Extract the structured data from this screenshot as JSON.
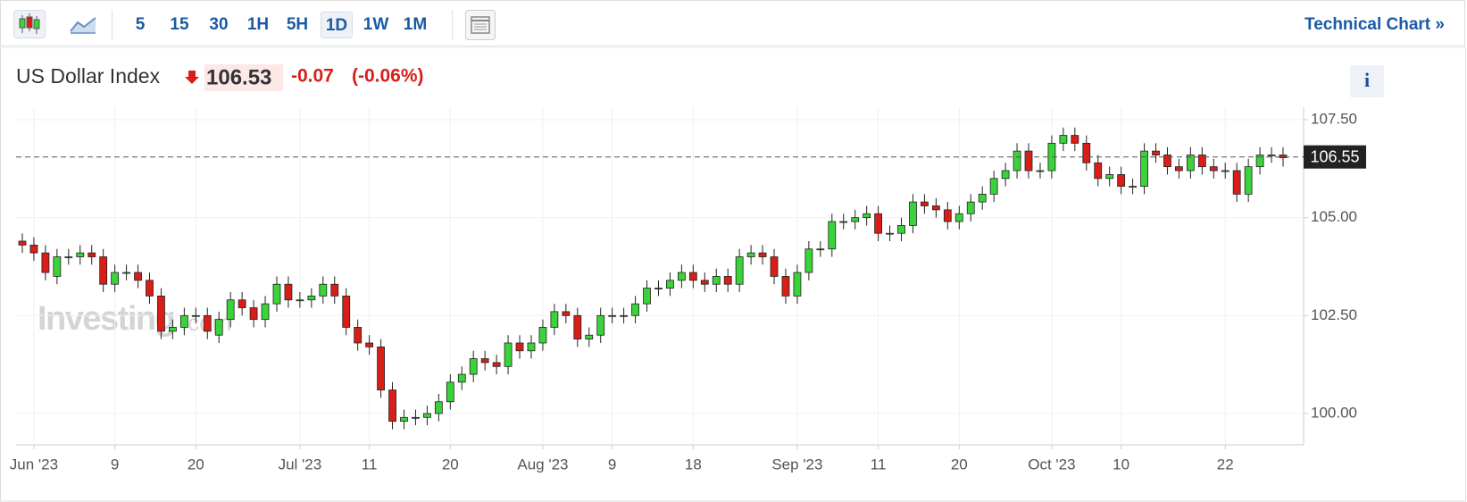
{
  "toolbar": {
    "intervals": [
      "5",
      "15",
      "30",
      "1H",
      "5H",
      "1D",
      "1W",
      "1M"
    ],
    "selected": "1D",
    "link": "Technical Chart"
  },
  "header": {
    "title": "US Dollar Index",
    "change_percent": "(-0.06%)"
  },
  "watermark": {
    "brand": "Investing",
    "suffix": ".com"
  },
  "chart_data": {
    "type": "candlestick",
    "title": "US Dollar Index",
    "price": 106.53,
    "change": -0.07,
    "last_price": 106.55,
    "up_color": "#3ad33a",
    "down_color": "#d91e18",
    "ylim": [
      99.2,
      107.82
    ],
    "yticks": [
      {
        "value": 100,
        "label": "100.00"
      },
      {
        "value": 102.5,
        "label": "102.50"
      },
      {
        "value": 105,
        "label": "105.00"
      },
      {
        "value": 107.5,
        "label": "107.50"
      }
    ],
    "categories": [
      null,
      "Jun '23",
      null,
      null,
      null,
      null,
      null,
      null,
      "9",
      null,
      null,
      null,
      null,
      null,
      null,
      "20",
      null,
      null,
      null,
      null,
      null,
      null,
      null,
      null,
      "Jul '23",
      null,
      null,
      null,
      null,
      null,
      "11",
      null,
      null,
      null,
      null,
      null,
      null,
      "20",
      null,
      null,
      null,
      null,
      null,
      null,
      null,
      "Aug '23",
      null,
      null,
      null,
      null,
      null,
      "9",
      null,
      null,
      null,
      null,
      null,
      null,
      "18",
      null,
      null,
      null,
      null,
      null,
      null,
      null,
      null,
      "Sep '23",
      null,
      null,
      null,
      null,
      null,
      null,
      "11",
      null,
      null,
      null,
      null,
      null,
      null,
      "20",
      null,
      null,
      null,
      null,
      null,
      null,
      null,
      "Oct '23",
      null,
      null,
      null,
      null,
      null,
      "10",
      null,
      null,
      null,
      null,
      null,
      null,
      null,
      null,
      "22",
      null,
      null,
      null,
      null,
      null
    ],
    "open": [
      104.4,
      104.3,
      104.1,
      103.5,
      104.0,
      104.0,
      104.1,
      104.0,
      103.3,
      103.6,
      103.6,
      103.4,
      103.0,
      102.1,
      102.2,
      102.5,
      102.5,
      102.0,
      102.4,
      102.9,
      102.7,
      102.4,
      102.8,
      103.3,
      102.9,
      102.9,
      103.0,
      103.3,
      103.0,
      102.2,
      101.8,
      101.7,
      100.6,
      99.8,
      99.9,
      99.9,
      100.0,
      100.3,
      100.8,
      101.0,
      101.4,
      101.3,
      101.2,
      101.8,
      101.6,
      101.8,
      102.2,
      102.6,
      102.5,
      101.9,
      102.0,
      102.5,
      102.5,
      102.5,
      102.8,
      103.2,
      103.2,
      103.4,
      103.6,
      103.4,
      103.3,
      103.5,
      103.3,
      104.0,
      104.1,
      104.0,
      103.5,
      103.0,
      103.6,
      104.2,
      104.2,
      104.9,
      104.9,
      105.0,
      105.1,
      104.6,
      104.6,
      104.8,
      105.4,
      105.3,
      105.2,
      104.9,
      105.1,
      105.4,
      105.6,
      106.0,
      106.2,
      106.7,
      106.2,
      106.2,
      106.9,
      107.1,
      106.9,
      106.4,
      106.0,
      106.1,
      105.8,
      105.8,
      106.7,
      106.6,
      106.3,
      106.2,
      106.6,
      106.3,
      106.2,
      106.2,
      105.6,
      106.3,
      106.6,
      106.6
    ],
    "high": [
      104.6,
      104.5,
      104.3,
      104.2,
      104.2,
      104.3,
      104.3,
      104.2,
      103.8,
      103.8,
      103.8,
      103.6,
      103.2,
      102.4,
      102.7,
      102.7,
      102.7,
      102.6,
      103.1,
      103.1,
      102.9,
      103.0,
      103.5,
      103.5,
      103.1,
      103.2,
      103.5,
      103.5,
      103.2,
      102.4,
      102.0,
      101.9,
      100.8,
      100.1,
      100.1,
      100.2,
      100.5,
      101.0,
      101.2,
      101.6,
      101.6,
      101.5,
      102.0,
      102.0,
      102.0,
      102.4,
      102.8,
      102.8,
      102.7,
      102.2,
      102.7,
      102.7,
      102.7,
      103.0,
      103.4,
      103.4,
      103.6,
      103.8,
      103.8,
      103.6,
      103.7,
      103.7,
      104.2,
      104.3,
      104.3,
      104.2,
      103.7,
      103.8,
      104.4,
      104.4,
      105.1,
      105.1,
      105.2,
      105.3,
      105.3,
      104.8,
      105.0,
      105.6,
      105.6,
      105.5,
      105.4,
      105.3,
      105.6,
      105.8,
      106.2,
      106.4,
      106.9,
      106.9,
      106.4,
      107.1,
      107.3,
      107.3,
      107.1,
      106.6,
      106.3,
      106.3,
      106.0,
      106.9,
      106.9,
      106.8,
      106.5,
      106.8,
      106.8,
      106.5,
      106.4,
      106.4,
      106.5,
      106.8,
      106.8,
      106.8
    ],
    "low": [
      104.1,
      103.9,
      103.4,
      103.3,
      103.8,
      103.8,
      103.8,
      103.1,
      103.1,
      103.4,
      103.2,
      102.8,
      101.9,
      101.9,
      102.0,
      102.3,
      101.9,
      101.8,
      102.2,
      102.5,
      102.2,
      102.2,
      102.6,
      102.7,
      102.7,
      102.7,
      102.8,
      102.8,
      102.0,
      101.6,
      101.5,
      100.4,
      99.6,
      99.6,
      99.7,
      99.7,
      99.8,
      100.1,
      100.6,
      100.8,
      101.1,
      101.0,
      101.0,
      101.4,
      101.4,
      101.6,
      102.0,
      102.3,
      101.7,
      101.7,
      101.8,
      102.3,
      102.3,
      102.3,
      102.6,
      103.0,
      103.0,
      103.2,
      103.2,
      103.1,
      103.1,
      103.1,
      103.1,
      103.8,
      103.8,
      103.3,
      102.8,
      102.8,
      103.4,
      104.0,
      104.0,
      104.7,
      104.7,
      104.8,
      104.4,
      104.4,
      104.4,
      104.6,
      105.1,
      105.0,
      104.7,
      104.7,
      104.9,
      105.2,
      105.4,
      105.8,
      106.0,
      106.0,
      106.0,
      106.0,
      106.7,
      106.7,
      106.2,
      105.8,
      105.8,
      105.6,
      105.6,
      105.6,
      106.4,
      106.1,
      106.0,
      106.0,
      106.1,
      106.0,
      106.0,
      105.4,
      105.4,
      106.1,
      106.4,
      106.3
    ],
    "close": [
      104.3,
      104.1,
      103.6,
      104.0,
      104.0,
      104.1,
      104.0,
      103.3,
      103.6,
      103.6,
      103.4,
      103.0,
      102.1,
      102.2,
      102.5,
      102.5,
      102.1,
      102.4,
      102.9,
      102.7,
      102.4,
      102.8,
      103.3,
      102.9,
      102.9,
      103.0,
      103.3,
      103.0,
      102.2,
      101.8,
      101.7,
      100.6,
      99.8,
      99.9,
      99.9,
      100.0,
      100.3,
      100.8,
      101.0,
      101.4,
      101.3,
      101.2,
      101.8,
      101.6,
      101.8,
      102.2,
      102.6,
      102.5,
      101.9,
      102.0,
      102.5,
      102.5,
      102.5,
      102.8,
      103.2,
      103.2,
      103.4,
      103.6,
      103.4,
      103.3,
      103.5,
      103.3,
      104.0,
      104.1,
      104.0,
      103.5,
      103.0,
      103.6,
      104.2,
      104.2,
      104.9,
      104.9,
      105.0,
      105.1,
      104.6,
      104.6,
      104.8,
      105.4,
      105.3,
      105.2,
      104.9,
      105.1,
      105.4,
      105.6,
      106.0,
      106.2,
      106.7,
      106.2,
      106.2,
      106.9,
      107.1,
      106.9,
      106.4,
      106.0,
      106.1,
      105.8,
      105.8,
      106.7,
      106.6,
      106.3,
      106.2,
      106.6,
      106.3,
      106.2,
      106.2,
      105.6,
      106.3,
      106.6,
      106.6,
      106.53
    ],
    "grid": true
  }
}
